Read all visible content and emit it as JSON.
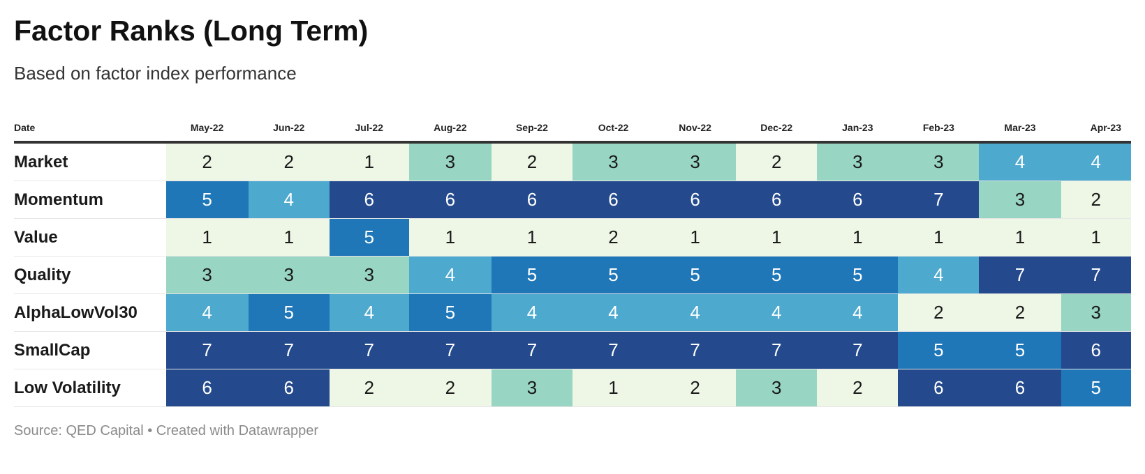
{
  "chart_data": {
    "type": "table",
    "title": "Factor Ranks (Long Term)",
    "subtitle": "Based on factor index performance",
    "row_header": "Date",
    "columns": [
      "May-22",
      "Jun-22",
      "Jul-22",
      "Aug-22",
      "Sep-22",
      "Oct-22",
      "Nov-22",
      "Dec-22",
      "Jan-23",
      "Feb-23",
      "Mar-23",
      "Apr-23"
    ],
    "rows": [
      {
        "label": "Market",
        "values": [
          2,
          2,
          1,
          3,
          2,
          3,
          3,
          2,
          3,
          3,
          4,
          4
        ]
      },
      {
        "label": "Momentum",
        "values": [
          5,
          4,
          6,
          6,
          6,
          6,
          6,
          6,
          6,
          7,
          3,
          2
        ]
      },
      {
        "label": "Value",
        "values": [
          1,
          1,
          5,
          1,
          1,
          2,
          1,
          1,
          1,
          1,
          1,
          1
        ]
      },
      {
        "label": "Quality",
        "values": [
          3,
          3,
          3,
          4,
          5,
          5,
          5,
          5,
          5,
          4,
          7,
          7
        ]
      },
      {
        "label": "AlphaLowVol30",
        "values": [
          4,
          5,
          4,
          5,
          4,
          4,
          4,
          4,
          4,
          2,
          2,
          3
        ]
      },
      {
        "label": "SmallCap",
        "values": [
          7,
          7,
          7,
          7,
          7,
          7,
          7,
          7,
          7,
          5,
          5,
          6
        ]
      },
      {
        "label": "Low Volatility",
        "values": [
          6,
          6,
          2,
          2,
          3,
          1,
          2,
          3,
          2,
          6,
          6,
          5
        ]
      }
    ],
    "color_scale": {
      "1": "#eef7e6",
      "2": "#eef7e6",
      "3": "#98d5c2",
      "4": "#4ea9cf",
      "5": "#1f77b8",
      "6": "#244a8d",
      "7": "#244a8d"
    },
    "text_colors": {
      "light": "#1a1a1a",
      "dark": "#ffffff"
    }
  },
  "footer": "Source: QED Capital • Created with Datawrapper"
}
